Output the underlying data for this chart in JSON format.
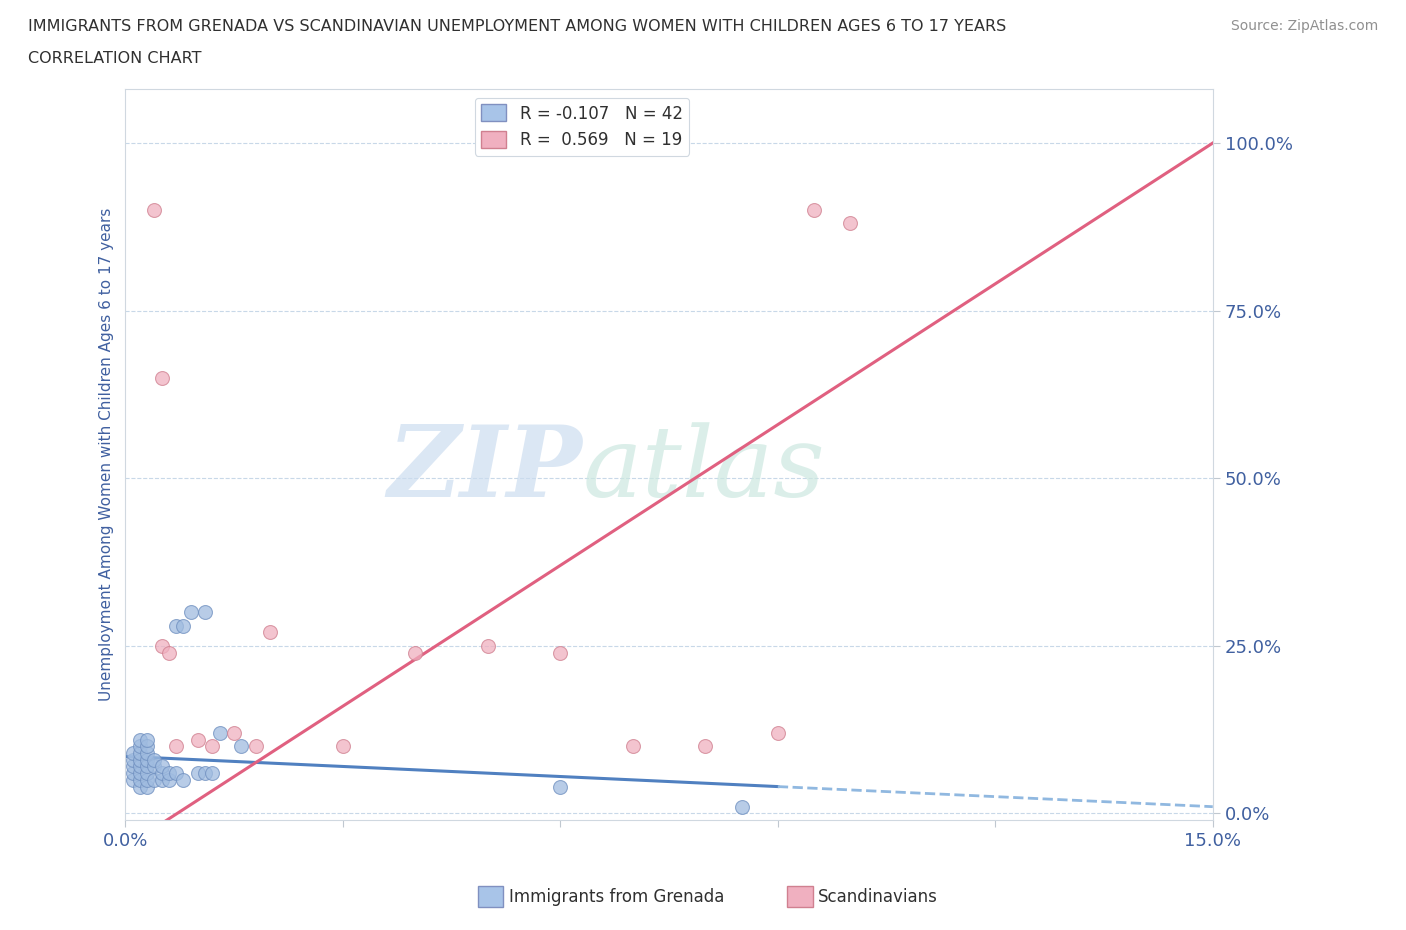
{
  "title_line1": "IMMIGRANTS FROM GRENADA VS SCANDINAVIAN UNEMPLOYMENT AMONG WOMEN WITH CHILDREN AGES 6 TO 17 YEARS",
  "title_line2": "CORRELATION CHART",
  "source": "Source: ZipAtlas.com",
  "ylabel": "Unemployment Among Women with Children Ages 6 to 17 years",
  "xmin": 0.0,
  "xmax": 0.15,
  "ymin": -0.01,
  "ymax": 1.08,
  "yticks": [
    0.0,
    0.25,
    0.5,
    0.75,
    1.0
  ],
  "ytick_labels": [
    "0.0%",
    "25.0%",
    "50.0%",
    "75.0%",
    "100.0%"
  ],
  "xticks": [
    0.0,
    0.03,
    0.06,
    0.09,
    0.12,
    0.15
  ],
  "xtick_labels": [
    "0.0%",
    "",
    "",
    "",
    "",
    "15.0%"
  ],
  "legend_entries": [
    {
      "label": "R = -0.107   N = 42",
      "color": "#a8c4e8"
    },
    {
      "label": "R =  0.569   N = 19",
      "color": "#f0a8bc"
    }
  ],
  "watermark_zip": "ZIP",
  "watermark_atlas": "atlas",
  "grenada_points_x": [
    0.001,
    0.001,
    0.001,
    0.001,
    0.001,
    0.002,
    0.002,
    0.002,
    0.002,
    0.002,
    0.002,
    0.002,
    0.002,
    0.003,
    0.003,
    0.003,
    0.003,
    0.003,
    0.003,
    0.003,
    0.003,
    0.004,
    0.004,
    0.004,
    0.005,
    0.005,
    0.005,
    0.006,
    0.006,
    0.007,
    0.007,
    0.008,
    0.008,
    0.009,
    0.01,
    0.011,
    0.011,
    0.012,
    0.013,
    0.016,
    0.06,
    0.085
  ],
  "grenada_points_y": [
    0.05,
    0.06,
    0.07,
    0.08,
    0.09,
    0.04,
    0.05,
    0.06,
    0.07,
    0.08,
    0.09,
    0.1,
    0.11,
    0.04,
    0.05,
    0.06,
    0.07,
    0.08,
    0.09,
    0.1,
    0.11,
    0.05,
    0.07,
    0.08,
    0.05,
    0.06,
    0.07,
    0.05,
    0.06,
    0.28,
    0.06,
    0.05,
    0.28,
    0.3,
    0.06,
    0.3,
    0.06,
    0.06,
    0.12,
    0.1,
    0.04,
    0.01
  ],
  "scandinavian_points_x": [
    0.004,
    0.005,
    0.005,
    0.006,
    0.007,
    0.01,
    0.012,
    0.015,
    0.018,
    0.02,
    0.03,
    0.04,
    0.05,
    0.06,
    0.07,
    0.08,
    0.09,
    0.095,
    0.1
  ],
  "scandinavian_points_y": [
    0.9,
    0.65,
    0.25,
    0.24,
    0.1,
    0.11,
    0.1,
    0.12,
    0.1,
    0.27,
    0.1,
    0.24,
    0.25,
    0.24,
    0.1,
    0.1,
    0.12,
    0.9,
    0.88
  ],
  "grenada_color": "#a0bce0",
  "grenada_edge_color": "#7090c0",
  "scandinavian_color": "#f0b0c0",
  "scandinavian_edge_color": "#d08090",
  "grenada_trend_solid_color": "#5080c0",
  "grenada_trend_dash_color": "#90b8e0",
  "scandinavian_trend_color": "#e06080",
  "title_color": "#303030",
  "axis_label_color": "#4060a0",
  "tick_color": "#4060a0",
  "grid_color": "#c8d8e8",
  "watermark_color_zip": "#c8d8f0",
  "watermark_color_atlas": "#c8d8f0"
}
